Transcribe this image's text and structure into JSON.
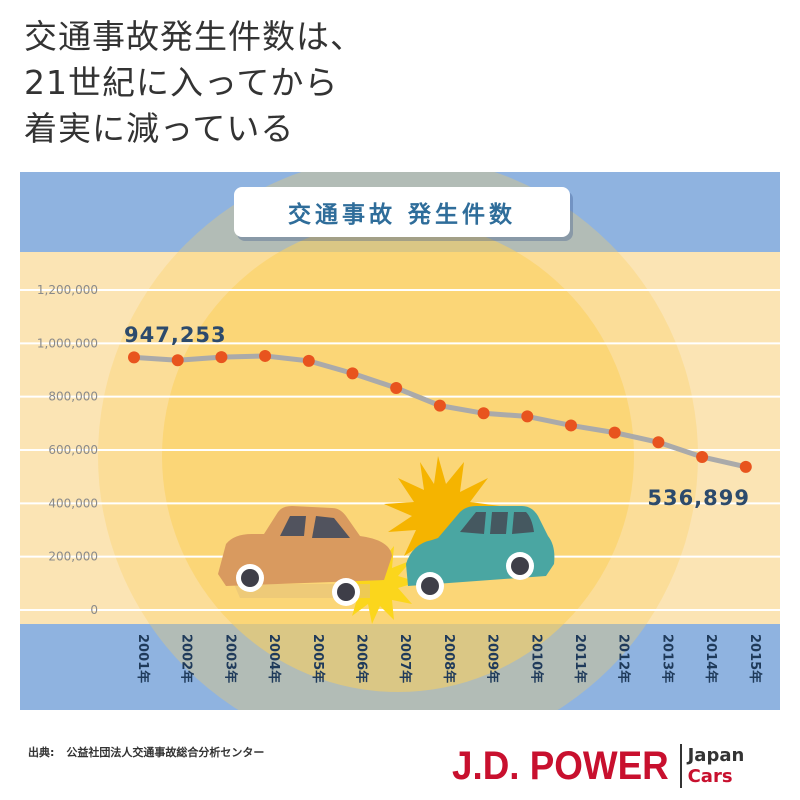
{
  "headline": {
    "lines": [
      "交通事故発生件数は、",
      "21世紀に入ってから",
      "着実に減っている"
    ]
  },
  "chart_data": {
    "type": "line",
    "title": "交通事故 発生件数",
    "categories": [
      "2001年",
      "2002年",
      "2003年",
      "2004年",
      "2005年",
      "2006年",
      "2007年",
      "2008年",
      "2009年",
      "2010年",
      "2011年",
      "2012年",
      "2013年",
      "2014年",
      "2015年"
    ],
    "series": [
      {
        "values": [
          947253,
          936721,
          948281,
          952720,
          934346,
          887267,
          832704,
          766394,
          737637,
          725924,
          692084,
          665157,
          629033,
          573842,
          536899
        ]
      }
    ],
    "yticks": [
      "1,200,000",
      "1,000,000",
      "800,000",
      "600,000",
      "400,000",
      "200,000",
      "0"
    ],
    "ylim": [
      0,
      1200000
    ],
    "annotations": {
      "first": "947,253",
      "last": "536,899"
    },
    "grid": true,
    "colors": {
      "line": "#aaaaaa",
      "marker": "#e8541e",
      "band": "#8fb3e0",
      "plot_bg": "#fbe4b4",
      "gridline": "#ffffff",
      "sun": "#fbcf5c"
    }
  },
  "footer": {
    "source_label": "出典:",
    "source_text": "公益社団法人交通事故総合分析センター"
  },
  "brand": {
    "name": "J.D. POWER",
    "sub_1": "Japan",
    "sub_2": "Cars"
  }
}
